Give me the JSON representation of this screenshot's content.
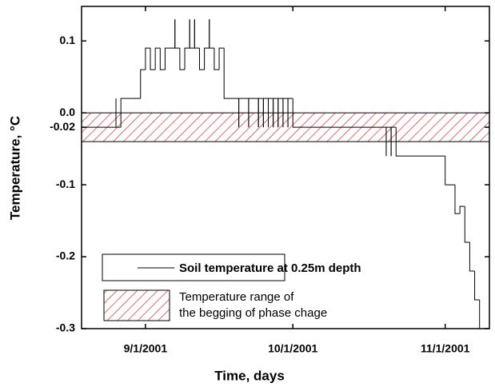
{
  "chart_data": {
    "type": "step",
    "xlabel": "Time, days",
    "ylabel": "Temperature, °C",
    "xlim": [
      "8/19/2001",
      "11/10/2001"
    ],
    "xticks": [
      "9/1/2001",
      "10/1/2001",
      "11/1/2001"
    ],
    "ylim": [
      -0.3,
      0.148
    ],
    "yticks": [
      0.1,
      {
        "value": 0,
        "label": "0.0"
      },
      -0.02,
      -0.1,
      -0.2,
      -0.3
    ],
    "series": [
      {
        "name": "Soil temperature at 0.25m depth",
        "color": "#000000",
        "x": [
          "8/19/2001",
          "8/26/2001",
          "8/26/2001",
          "8/27/2001",
          "8/31/2001",
          "9/1/2001",
          "9/2/2001",
          "9/3/2001",
          "9/4/2001",
          "9/5/2001",
          "9/7/2001",
          "9/7/2001",
          "9/8/2001",
          "9/9/2001",
          "9/10/2001",
          "9/10/2001",
          "9/11/2001",
          "9/11/2001",
          "9/12/2001",
          "9/13/2001",
          "9/14/2001",
          "9/14/2001",
          "9/15/2001",
          "9/16/2001",
          "9/17/2001",
          "9/20/2001",
          "9/20/2001",
          "9/22/2001",
          "9/22/2001",
          "9/24/2001",
          "9/24/2001",
          "9/25/2001",
          "9/25/2001",
          "9/26/2001",
          "9/26/2001",
          "9/27/2001",
          "9/27/2001",
          "9/28/2001",
          "9/28/2001",
          "9/29/2001",
          "9/29/2001",
          "9/30/2001",
          "9/30/2001",
          "10/1/2001",
          "10/20/2001",
          "10/20/2001",
          "10/21/2001",
          "10/21/2001",
          "10/22/2001",
          "11/1/2001",
          "11/3/2001",
          "11/3/2001",
          "11/4/2001",
          "11/5/2001",
          "11/6/2001",
          "11/7/2001",
          "11/8/2001",
          "11/8/2001"
        ],
        "values": [
          -0.02,
          0.02,
          -0.02,
          0.02,
          0.06,
          0.09,
          0.06,
          0.09,
          0.06,
          0.09,
          0.13,
          0.09,
          0.06,
          0.09,
          0.13,
          0.09,
          0.13,
          0.09,
          0.06,
          0.09,
          0.13,
          0.09,
          0.06,
          0.09,
          0.02,
          -0.02,
          0.02,
          -0.02,
          0.02,
          -0.02,
          0.02,
          -0.02,
          0.02,
          -0.02,
          0.02,
          -0.02,
          0.02,
          -0.02,
          0.02,
          -0.02,
          0.02,
          -0.02,
          0.02,
          -0.02,
          -0.06,
          -0.02,
          -0.06,
          -0.02,
          -0.06,
          -0.1,
          -0.13,
          -0.14,
          -0.13,
          -0.18,
          -0.22,
          -0.26,
          -0.29,
          -0.3
        ]
      }
    ],
    "bands": [
      {
        "name": [
          "Temperature range of",
          "the begging of phase chage"
        ],
        "values": [
          -0.04,
          0
        ],
        "color": "#d42020"
      }
    ]
  }
}
